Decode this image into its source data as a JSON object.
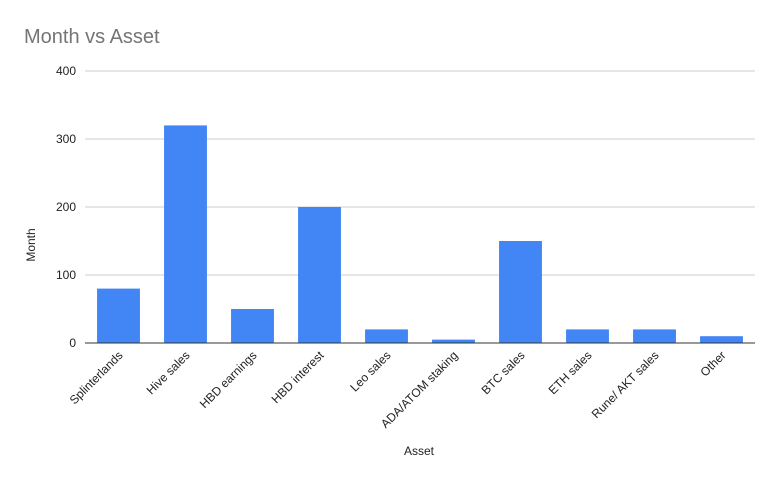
{
  "chart_data": {
    "type": "bar",
    "title": "Month vs Asset",
    "xlabel": "Asset",
    "ylabel": "Month",
    "categories": [
      "Splinterlands",
      "Hive sales",
      "HBD earnings",
      "HBD interest",
      "Leo sales",
      "ADA/ATOM staking",
      "BTC sales",
      "ETH sales",
      "Rune/ AKT sales",
      "Other"
    ],
    "values": [
      80,
      320,
      50,
      200,
      20,
      5,
      150,
      20,
      20,
      10
    ],
    "ylim": [
      0,
      400
    ],
    "yticks": [
      0,
      100,
      200,
      300,
      400
    ],
    "grid": true,
    "legend": "none",
    "colors": {
      "bar": "#4285f4",
      "title": "#757575",
      "grid": "#cccccc",
      "axis": "#333333",
      "text": "#222222"
    }
  }
}
